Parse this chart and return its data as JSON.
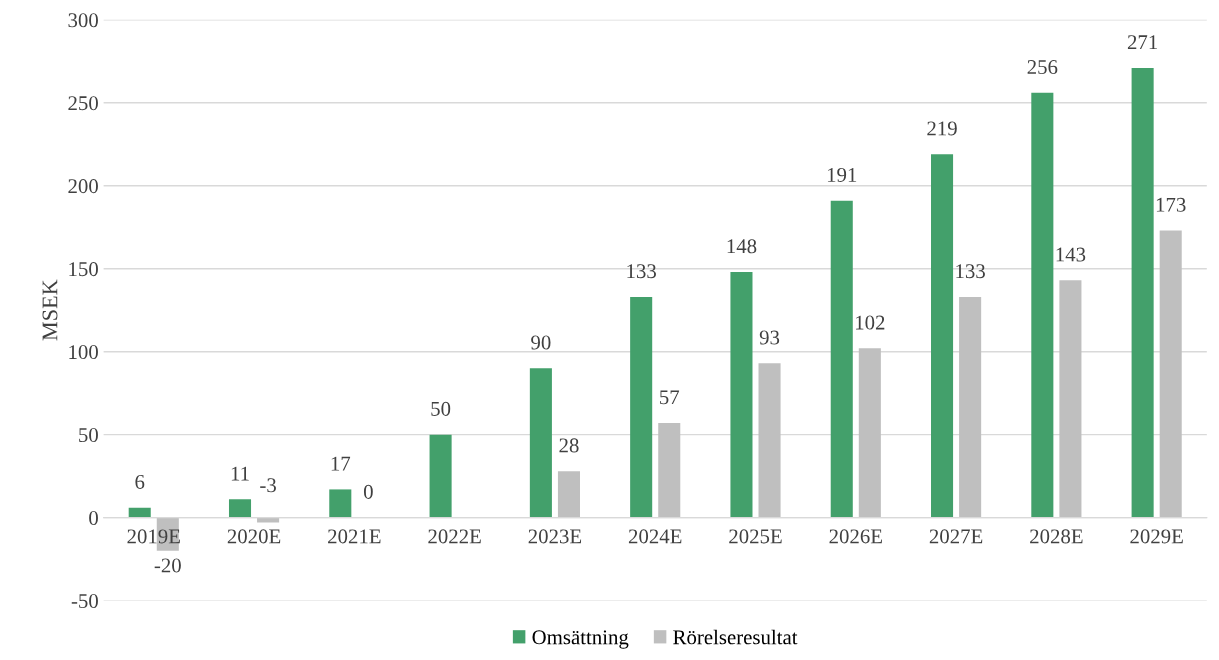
{
  "chart_data": {
    "type": "bar",
    "ylabel": "MSEK",
    "categories": [
      "2019E",
      "2020E",
      "2021E",
      "2022E",
      "2023E",
      "2024E",
      "2025E",
      "2026E",
      "2027E",
      "2028E",
      "2029E"
    ],
    "series": [
      {
        "name": "Omsättning",
        "color": "#43a06b",
        "values": [
          6,
          11,
          17,
          50,
          90,
          133,
          148,
          191,
          219,
          256,
          271
        ],
        "value_labels": [
          "6",
          "11",
          "17",
          "50",
          "90",
          "133",
          "148",
          "191",
          "219",
          "256",
          "271"
        ]
      },
      {
        "name": "Rörelseresultat",
        "color": "#bfbfbf",
        "values": [
          -20,
          -3,
          0,
          null,
          28,
          57,
          93,
          102,
          133,
          143,
          173
        ],
        "value_labels": [
          "-20",
          "-3",
          "0",
          null,
          "28",
          "57",
          "93",
          "102",
          "133",
          "143",
          "173"
        ]
      }
    ],
    "ylim": [
      -50,
      300
    ],
    "yticks": [
      -50,
      0,
      50,
      100,
      150,
      200,
      250,
      300
    ],
    "grid": "y",
    "legend": "bottom"
  }
}
